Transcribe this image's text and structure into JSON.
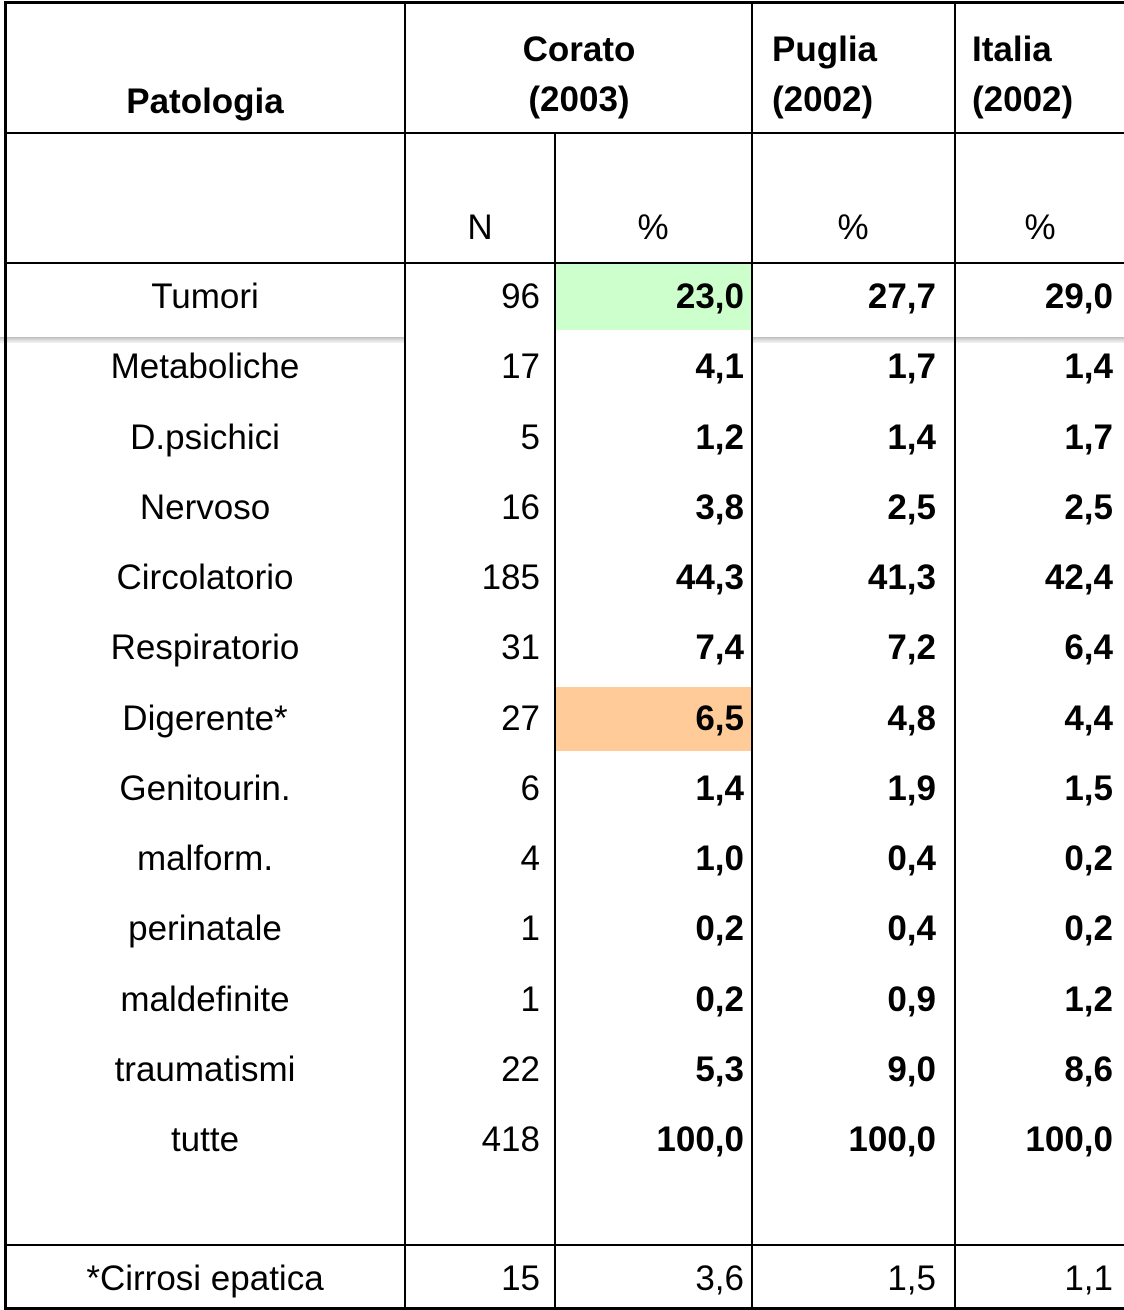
{
  "table": {
    "header": [
      [
        "Patologia"
      ],
      [
        "Corato",
        "(2003)"
      ],
      [
        "Puglia",
        "(2002)"
      ],
      [
        "Italia",
        "(2002)"
      ]
    ],
    "subheader": [
      "N",
      "%",
      "%",
      "%"
    ],
    "rows": [
      [
        "Tumori",
        "96",
        "23,0",
        "27,7",
        "29,0"
      ],
      [
        "Metaboliche",
        "17",
        "4,1",
        "1,7",
        "1,4"
      ],
      [
        "D.psichici",
        "5",
        "1,2",
        "1,4",
        "1,7"
      ],
      [
        "Nervoso",
        "16",
        "3,8",
        "2,5",
        "2,5"
      ],
      [
        "Circolatorio",
        "185",
        "44,3",
        "41,3",
        "42,4"
      ],
      [
        "Respiratorio",
        "31",
        "7,4",
        "7,2",
        "6,4"
      ],
      [
        "Digerente*",
        "27",
        "6,5",
        "4,8",
        "4,4"
      ],
      [
        "Genitourin.",
        "6",
        "1,4",
        "1,9",
        "1,5"
      ],
      [
        "malform.",
        "4",
        "1,0",
        "0,4",
        "0,2"
      ],
      [
        "perinatale",
        "1",
        "0,2",
        "0,4",
        "0,2"
      ],
      [
        "maldefinite",
        "1",
        "0,2",
        "0,9",
        "1,2"
      ],
      [
        "traumatismi",
        "22",
        "5,3",
        "9,0",
        "8,6"
      ],
      [
        "tutte",
        "418",
        "100,0",
        "100,0",
        "100,0"
      ]
    ],
    "footer": [
      "*Cirrosi epatica",
      "15",
      "3,6",
      "1,5",
      "1,1"
    ]
  }
}
